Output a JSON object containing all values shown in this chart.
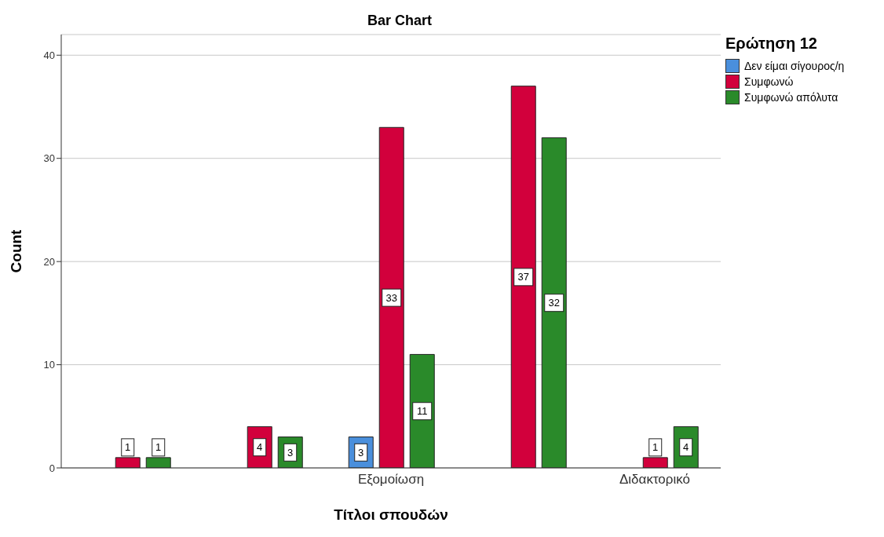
{
  "chart_data": {
    "type": "bar",
    "title": "Bar Chart",
    "xlabel": "Τίτλοι σπουδών",
    "ylabel": "Count",
    "legend_title": "Ερώτηση 12",
    "categories": [
      null,
      null,
      "Εξομοίωση",
      null,
      "Διδακτορικό"
    ],
    "series": [
      {
        "name": "Δεν είμαι σίγουρος/η",
        "color": "#4a8fdc",
        "values": [
          null,
          null,
          3,
          null,
          null
        ]
      },
      {
        "name": "Συμφωνώ",
        "color": "#d2003c",
        "values": [
          1,
          4,
          33,
          37,
          1
        ]
      },
      {
        "name": "Συμφωνώ απόλυτα",
        "color": "#2a8a2a",
        "values": [
          1,
          3,
          11,
          32,
          4
        ]
      }
    ],
    "ylim": [
      0,
      42
    ],
    "yticks": [
      0,
      10,
      20,
      30,
      40
    ],
    "grid": "y",
    "legend": "top right",
    "data_labels": true
  }
}
